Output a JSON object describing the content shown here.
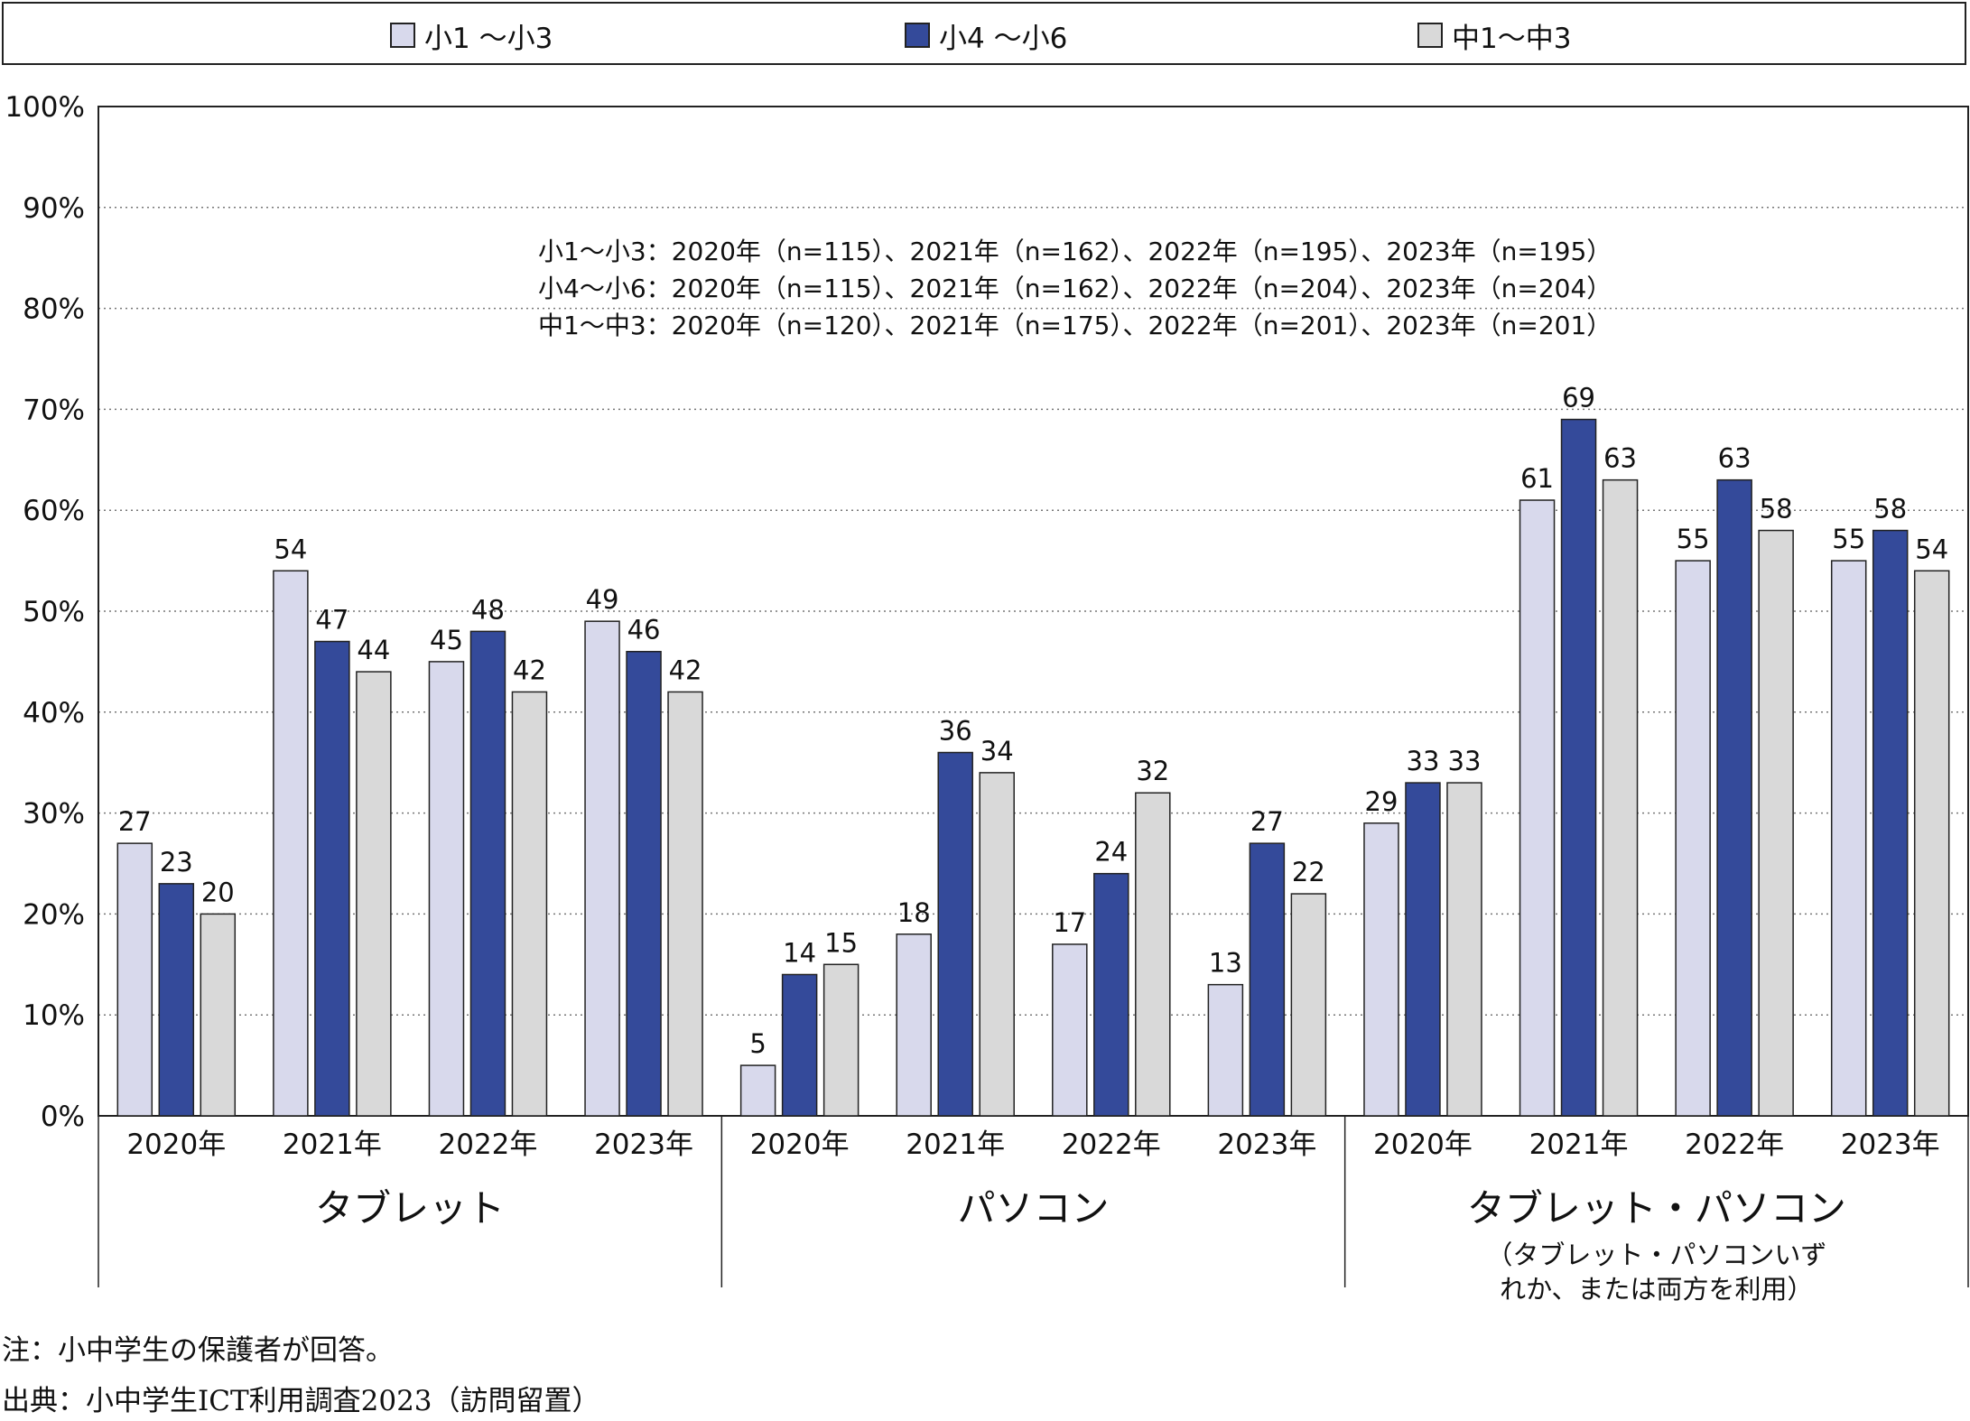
{
  "legend": [
    {
      "label": "小1 ～小3",
      "color": "#d8d9ec"
    },
    {
      "label": "小4 ～小6",
      "color": "#344a9a"
    },
    {
      "label": "中1～中3",
      "color": "#d9d9d9"
    }
  ],
  "annotation_lines": [
    "小1～小3：2020年（n=115）、2021年（n=162）、2022年（n=195）、2023年（n=195）",
    "小4～小6：2020年（n=115）、2021年（n=162）、2022年（n=204）、2023年（n=204）",
    "中1～中3：2020年（n=120）、2021年（n=175）、2022年（n=201）、2023年（n=201）"
  ],
  "notes": {
    "note": "注：小中学生の保護者が回答。",
    "source": "出典：小中学生ICT利用調査2023（訪問留置）"
  },
  "chart_data": {
    "type": "bar",
    "ylim": [
      0,
      100
    ],
    "yticks": [
      "0%",
      "10%",
      "20%",
      "30%",
      "40%",
      "50%",
      "60%",
      "70%",
      "80%",
      "90%",
      "100%"
    ],
    "grid": true,
    "legend_position": "top",
    "groups": [
      {
        "name": "タブレット",
        "subtitle": "",
        "categories": [
          "2020年",
          "2021年",
          "2022年",
          "2023年"
        ],
        "series": [
          {
            "name": "小1 ～小3",
            "values": [
              27,
              54,
              45,
              49
            ]
          },
          {
            "name": "小4 ～小6",
            "values": [
              23,
              47,
              48,
              46
            ]
          },
          {
            "name": "中1～中3",
            "values": [
              20,
              44,
              42,
              42
            ]
          }
        ]
      },
      {
        "name": "パソコン",
        "subtitle": "",
        "categories": [
          "2020年",
          "2021年",
          "2022年",
          "2023年"
        ],
        "series": [
          {
            "name": "小1 ～小3",
            "values": [
              5,
              18,
              17,
              13
            ]
          },
          {
            "name": "小4 ～小6",
            "values": [
              14,
              36,
              24,
              27
            ]
          },
          {
            "name": "中1～中3",
            "values": [
              15,
              34,
              32,
              22
            ]
          }
        ]
      },
      {
        "name": "タブレット・パソコン",
        "subtitle": "（タブレット・パソコンいずれか、または両方を利用）",
        "subtitle_lines": [
          "（タブレット・パソコンいず",
          "れか、または両方を利用）"
        ],
        "categories": [
          "2020年",
          "2021年",
          "2022年",
          "2023年"
        ],
        "series": [
          {
            "name": "小1 ～小3",
            "values": [
              29,
              61,
              55,
              55
            ]
          },
          {
            "name": "小4 ～小6",
            "values": [
              33,
              69,
              63,
              58
            ]
          },
          {
            "name": "中1～中3",
            "values": [
              33,
              63,
              58,
              54
            ]
          }
        ]
      }
    ]
  }
}
